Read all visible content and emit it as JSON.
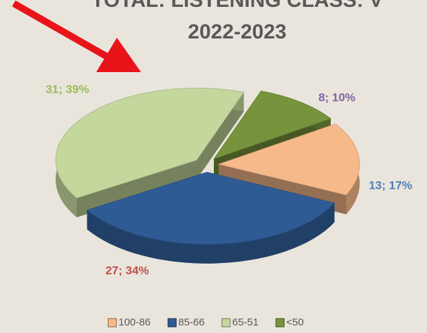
{
  "chart_data": {
    "type": "pie",
    "title": "TOTAL: LISTENING CLASS: V",
    "subtitle": "2022-2023",
    "categories": [
      "100-86",
      "85-66",
      "65-51",
      "<50"
    ],
    "values": [
      13,
      27,
      31,
      8
    ],
    "value_labels": [
      "13; 17%",
      "27; 34%",
      "31; 39%",
      "8; 10%"
    ],
    "colors": [
      "#f6b98a",
      "#2f5b95",
      "#c4d79d",
      "#77933c"
    ],
    "label_colors": [
      "#4f81bd",
      "#c0504d",
      "#9bbb59",
      "#8064a2"
    ],
    "legend": "bottom"
  }
}
